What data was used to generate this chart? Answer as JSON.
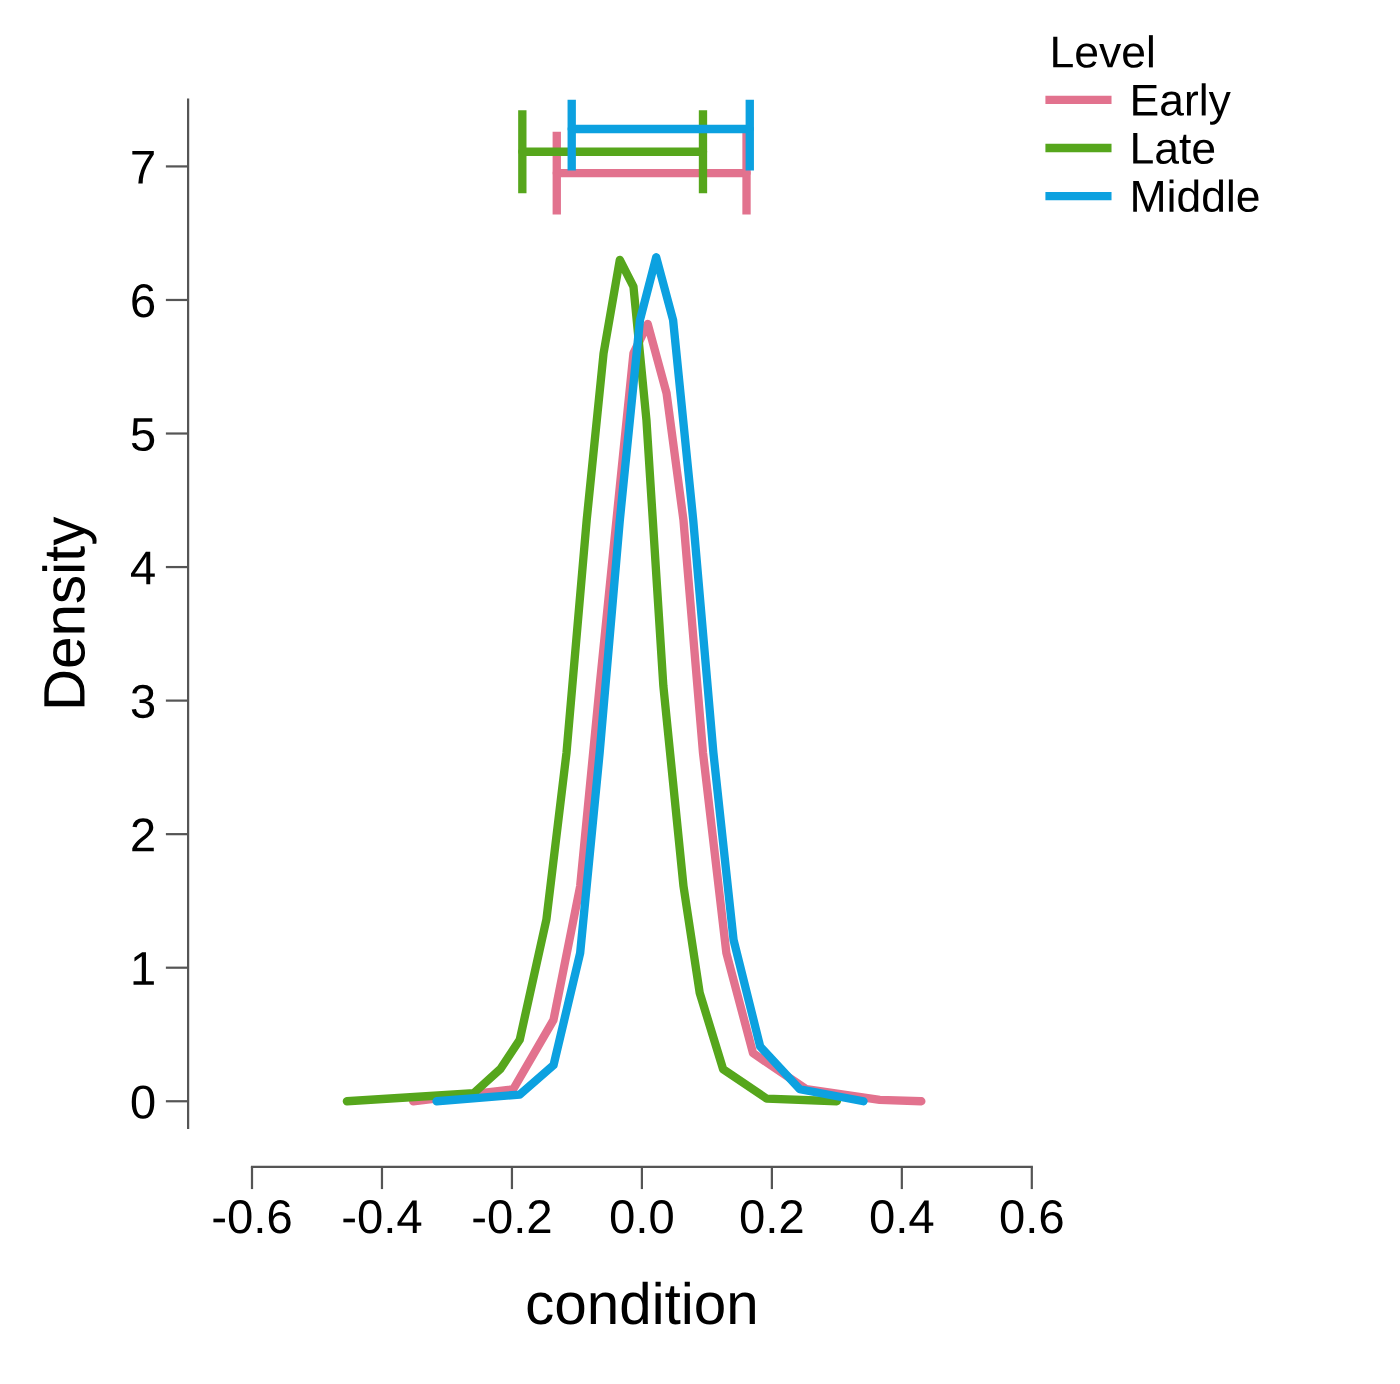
{
  "chart_data": {
    "type": "line",
    "xlabel": "condition",
    "ylabel": "Density",
    "legend_title": "Level",
    "legend": "top right",
    "grid": false,
    "marker": "none",
    "line_style": "solid",
    "xlim": [
      -0.6,
      0.6
    ],
    "xticks": [
      {
        "value": -0.6,
        "label": "-0.6"
      },
      {
        "value": -0.4,
        "label": "-0.4"
      },
      {
        "value": -0.2,
        "label": "-0.2"
      },
      {
        "value": 0,
        "label": "0.0"
      },
      {
        "value": 0.2,
        "label": "0.2"
      },
      {
        "value": 0.4,
        "label": "0.4"
      },
      {
        "value": 0.6,
        "label": "0.6"
      }
    ],
    "ylim": [
      -0.2,
      7.5
    ],
    "yticks": [
      0,
      1,
      2,
      3,
      4,
      5,
      6,
      7
    ],
    "series": [
      {
        "name": "Early",
        "color": "#e2728e",
        "x": [
          -0.352,
          -0.198,
          -0.136,
          -0.095,
          -0.065,
          -0.034,
          -0.013,
          0.009,
          0.038,
          0.064,
          0.094,
          0.13,
          0.171,
          0.253,
          0.366,
          0.43
        ],
        "values": [
          0,
          0.09,
          0.61,
          1.61,
          3.11,
          4.6,
          5.6,
          5.82,
          5.3,
          4.35,
          2.61,
          1.11,
          0.36,
          0.09,
          0.01,
          0
        ]
      },
      {
        "name": "Late",
        "color": "#56a61c",
        "x": [
          -0.454,
          -0.259,
          -0.218,
          -0.188,
          -0.147,
          -0.116,
          -0.085,
          -0.059,
          -0.034,
          -0.013,
          0.007,
          0.033,
          0.064,
          0.089,
          0.125,
          0.192,
          0.3
        ],
        "values": [
          0,
          0.06,
          0.24,
          0.46,
          1.36,
          2.61,
          4.35,
          5.6,
          6.3,
          6.1,
          5.1,
          3.11,
          1.61,
          0.81,
          0.24,
          0.02,
          0
        ]
      },
      {
        "name": "Middle",
        "color": "#0ca1e0",
        "x": [
          -0.316,
          -0.188,
          -0.136,
          -0.095,
          -0.065,
          -0.034,
          -0.003,
          0.022,
          0.048,
          0.079,
          0.11,
          0.141,
          0.182,
          0.243,
          0.341
        ],
        "values": [
          0,
          0.05,
          0.27,
          1.11,
          2.61,
          4.35,
          5.85,
          6.32,
          5.85,
          4.35,
          2.61,
          1.21,
          0.41,
          0.09,
          0
        ]
      },
      {
        "color": "#e2728e",
        "x": [
          -0.131,
          0.161
        ],
        "values": [
          6.95,
          6.95
        ],
        "errors": [
          0.31,
          0.31
        ]
      },
      {
        "color": "#56a61c",
        "x": [
          -0.184,
          0.094
        ],
        "values": [
          7.11,
          7.11
        ],
        "errors": [
          0.31,
          0.31
        ]
      },
      {
        "color": "#0ca1e0",
        "x": [
          -0.108,
          0.166
        ],
        "values": [
          7.28,
          7.28
        ],
        "errors": [
          0.31,
          0.31
        ]
      }
    ]
  }
}
